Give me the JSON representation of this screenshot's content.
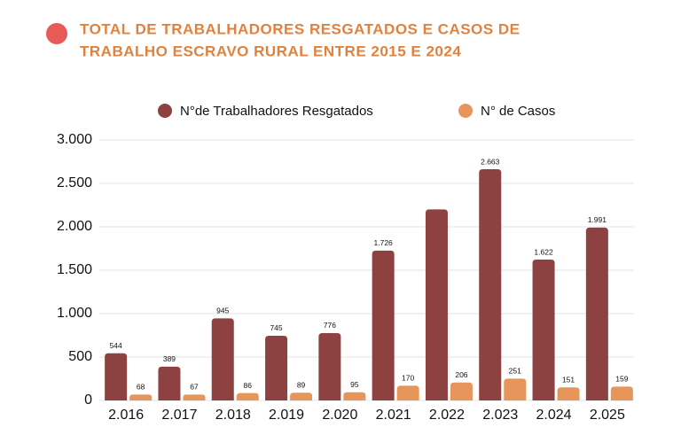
{
  "chart_data": {
    "type": "bar",
    "title": [
      "TOTAL DE TRABALHADORES RESGATADOS E CASOS DE",
      "TRABALHO ESCRAVO RURAL ENTRE 2015 E 2024"
    ],
    "categories": [
      "2.016",
      "2.017",
      "2.018",
      "2.019",
      "2.020",
      "2.021",
      "2.022",
      "2.023",
      "2.024",
      "2.025"
    ],
    "series": [
      {
        "name": "N°de Trabalhadores Resgatados",
        "color": "#8e4141",
        "values": [
          544,
          389,
          945,
          745,
          776,
          1726,
          2200,
          2663,
          1622,
          1991
        ],
        "value_labels": [
          "544",
          "389",
          "945",
          "745",
          "776",
          "1.726",
          null,
          "2.663",
          "1.622",
          "1.991"
        ]
      },
      {
        "name": "N° de Casos",
        "color": "#e8955c",
        "values": [
          68,
          67,
          86,
          89,
          95,
          170,
          206,
          251,
          151,
          159
        ]
      }
    ],
    "ylim": [
      0,
      3000
    ],
    "yticks": [
      0,
      500,
      {
        "value": 1000,
        "label": "1.000"
      },
      {
        "value": 1500,
        "label": "1.500"
      },
      {
        "value": 2000,
        "label": "2.000"
      },
      {
        "value": 2500,
        "label": "2.500"
      },
      {
        "value": 3000,
        "label": "3.000"
      }
    ],
    "grid": true
  }
}
